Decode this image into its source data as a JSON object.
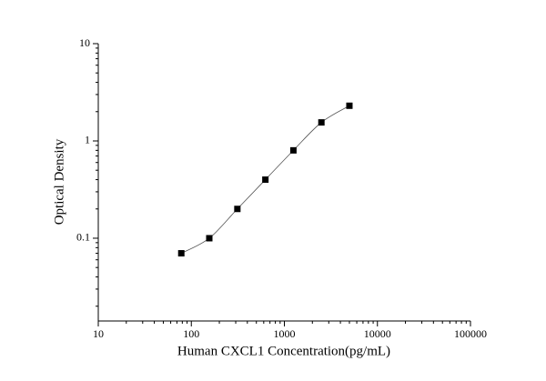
{
  "chart_data": {
    "type": "scatter",
    "x_label": "Human CXCL1 Concentration(pg/mL)",
    "y_label": "Optical Density",
    "x": [
      78,
      156,
      312.5,
      625,
      1250,
      2500,
      5000
    ],
    "series": [
      {
        "values": [
          0.07,
          0.1,
          0.2,
          0.4,
          0.8,
          1.55,
          2.3
        ],
        "color": "#000000",
        "line_color": "#555555"
      }
    ],
    "xscale": "log",
    "yscale": "log",
    "xlim": [
      10,
      100000
    ],
    "ylim": [
      0.0141,
      10
    ],
    "xticks": [
      10,
      100,
      1000,
      10000,
      100000
    ],
    "yticks": [
      0.1,
      1,
      10
    ],
    "grid": false
  }
}
